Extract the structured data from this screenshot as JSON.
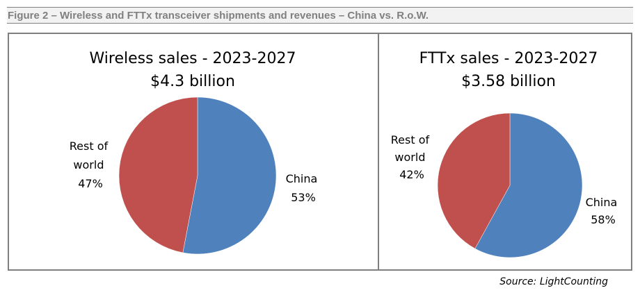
{
  "figure_title": "Figure 2 – Wireless and FTTx transceiver shipments and revenues – China vs. R.o.W.",
  "source": "Source: LightCounting",
  "colors": {
    "China": "#4f81bd",
    "Rest of world": "#c0504d"
  },
  "chart_data": [
    {
      "type": "pie",
      "title": "Wireless sales - 2023-2027",
      "subtitle": "$4.3 billion",
      "slices": [
        {
          "label": "China",
          "value": 53,
          "value_label": "53%"
        },
        {
          "label": "Rest of world",
          "value": 47,
          "value_label": "47%"
        }
      ]
    },
    {
      "type": "pie",
      "title": "FTTx sales - 2023-2027",
      "subtitle": "$3.58 billion",
      "slices": [
        {
          "label": "China",
          "value": 58,
          "value_label": "58%"
        },
        {
          "label": "Rest of world",
          "value": 42,
          "value_label": "42%"
        }
      ]
    }
  ]
}
